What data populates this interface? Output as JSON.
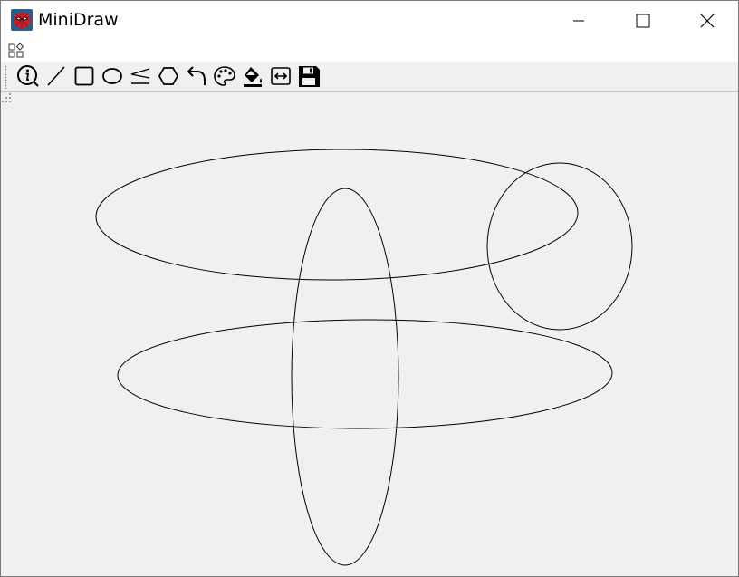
{
  "window": {
    "title": "MiniDraw",
    "icon": "spider-mask-icon",
    "controls": [
      "minimize-icon",
      "maximize-icon",
      "close-icon"
    ]
  },
  "menubar": {
    "icon": "shapes-menu-icon"
  },
  "toolbar": {
    "tools": [
      {
        "name": "info",
        "icon": "info-icon"
      },
      {
        "name": "line",
        "icon": "line-icon"
      },
      {
        "name": "rectangle",
        "icon": "rectangle-icon"
      },
      {
        "name": "ellipse",
        "icon": "ellipse-icon"
      },
      {
        "name": "polyline",
        "icon": "polyline-icon"
      },
      {
        "name": "polygon",
        "icon": "polygon-icon"
      },
      {
        "name": "undo",
        "icon": "undo-icon"
      },
      {
        "name": "color",
        "icon": "palette-icon"
      },
      {
        "name": "fill",
        "icon": "paint-bucket-icon"
      },
      {
        "name": "width",
        "icon": "line-width-icon"
      },
      {
        "name": "save",
        "icon": "save-icon"
      }
    ]
  },
  "canvas": {
    "background": "#f0f0f0",
    "stroke_color": "#000000",
    "shape_count": 4
  }
}
